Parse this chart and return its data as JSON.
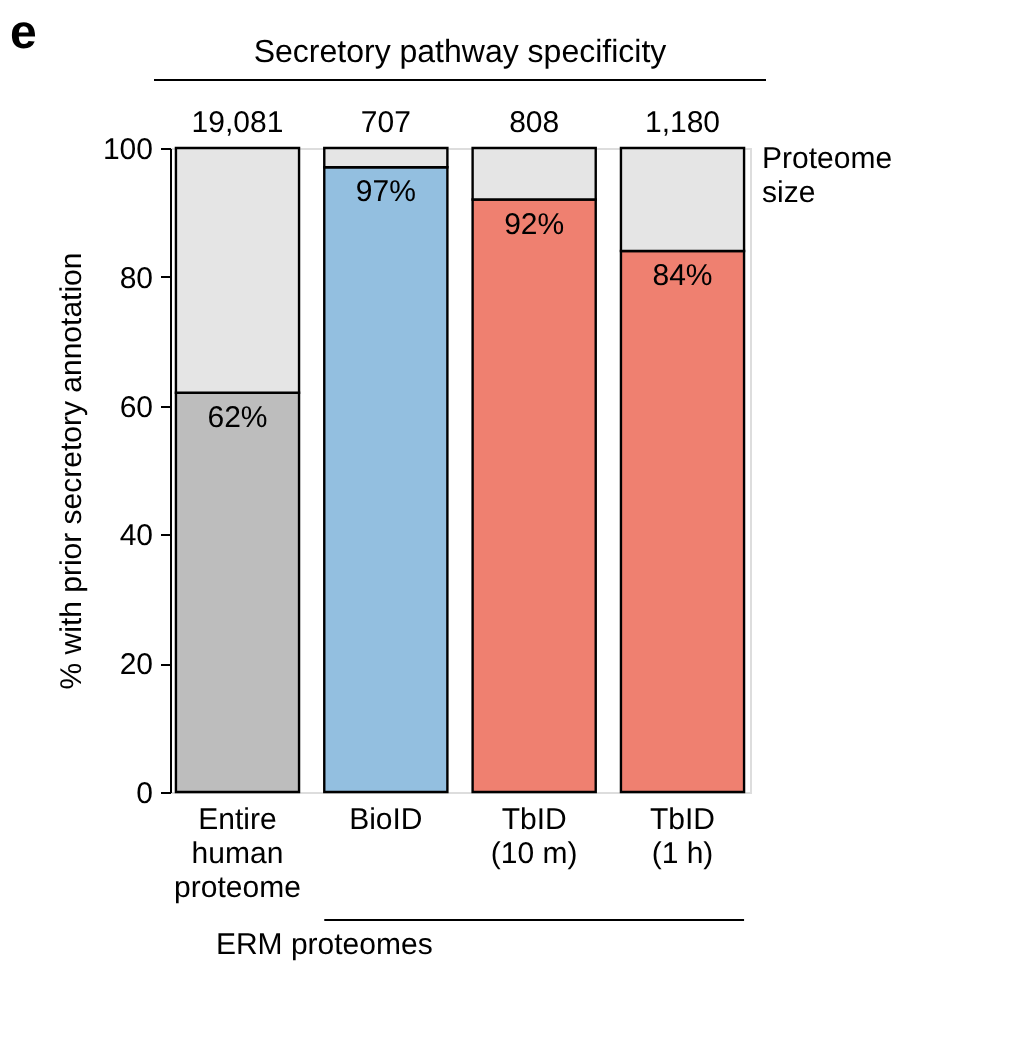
{
  "chart_data": {
    "type": "bar",
    "stacked": true,
    "title": "Secretory pathway specificity",
    "ylabel": "% with prior secretory annotation",
    "categories": [
      "Entire\nhuman\nproteome",
      "BioID",
      "TbID\n(10 m)",
      "TbID\n(1 h)"
    ],
    "series": [
      {
        "values": [
          62,
          97,
          92,
          84
        ],
        "colors": [
          "#bdbdbd",
          "#93bfe0",
          "#ef8070",
          "#ef8070"
        ],
        "value_labels": [
          "62%",
          "97%",
          "92%",
          "84%"
        ]
      },
      {
        "values": [
          38,
          3,
          8,
          16
        ],
        "color": "#e5e5e5"
      }
    ],
    "ylim": [
      0,
      100
    ],
    "yticks": [
      0,
      20,
      40,
      60,
      80,
      100
    ],
    "grid": false,
    "annotations": [
      "e",
      "19,081",
      "707",
      "808",
      "1,180",
      "Proteome size",
      "ERM proteomes"
    ]
  }
}
